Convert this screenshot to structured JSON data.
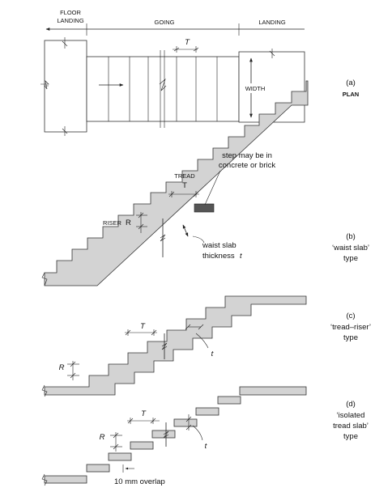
{
  "plan": {
    "floor_landing_line1": "FLOOR",
    "floor_landing_line2": "LANDING",
    "going": "GOING",
    "landing": "LANDING",
    "t_label": "T",
    "width": "WIDTH",
    "caption_letter": "(a)",
    "caption_text": "PLAN"
  },
  "waist": {
    "tread_label": "TREAD",
    "tread_t": "T",
    "riser_label": "RISER",
    "riser_r": "R",
    "step_note_line1": "step may be in",
    "step_note_line2": "concrete or brick",
    "waist_note_line1": "waist slab",
    "waist_note_line2": "thickness",
    "waist_note_t": "t",
    "caption_letter": "(b)",
    "caption_line1": "‘waist slab’",
    "caption_line2": "type"
  },
  "tread_riser": {
    "t_label": "T",
    "r_label": "R",
    "thick_label": "t",
    "caption_letter": "(c)",
    "caption_line1": "‘tread–riser’",
    "caption_line2": "type"
  },
  "isolated": {
    "t_label": "T",
    "r_label": "R",
    "thick_label": "t",
    "overlap_note": "10 mm overlap",
    "caption_letter": "(d)",
    "caption_line1": "‘isolated",
    "caption_line2": "tread slab’",
    "caption_line3": "type"
  }
}
